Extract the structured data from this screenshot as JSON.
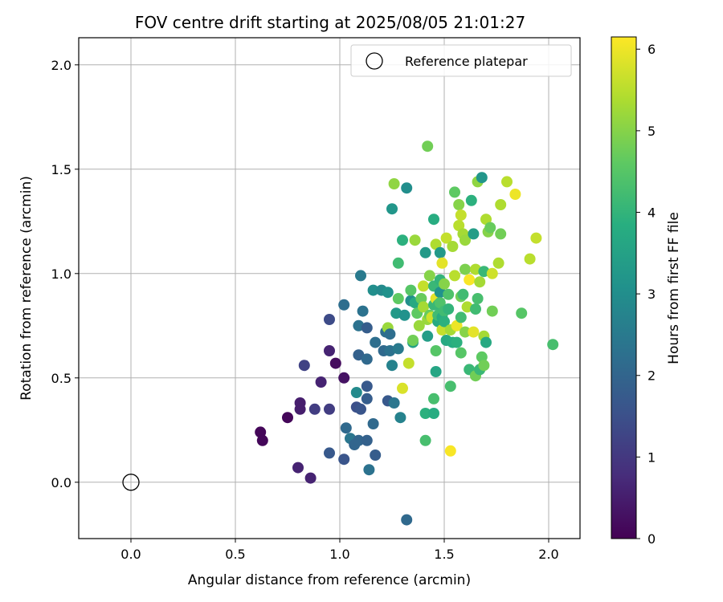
{
  "chart_data": {
    "type": "scatter",
    "title": "FOV centre drift starting at 2025/08/05 21:01:27",
    "xlabel": "Angular distance from reference (arcmin)",
    "ylabel": "Rotation from reference (arcmin)",
    "xlim": [
      -0.25,
      2.15
    ],
    "ylim": [
      -0.27,
      2.13
    ],
    "xticks": [
      0.0,
      0.5,
      1.0,
      1.5,
      2.0
    ],
    "xtick_labels": [
      "0.0",
      "0.5",
      "1.0",
      "1.5",
      "2.0"
    ],
    "yticks": [
      0.0,
      0.5,
      1.0,
      1.5,
      2.0
    ],
    "ytick_labels": [
      "0.0",
      "0.5",
      "1.0",
      "1.5",
      "2.0"
    ],
    "grid": true,
    "colormap": "viridis",
    "colorbar": {
      "label": "Hours from first FF file",
      "range": [
        0,
        6.15
      ],
      "ticks": [
        0,
        1,
        2,
        3,
        4,
        5,
        6
      ],
      "tick_labels": [
        "0",
        "1",
        "2",
        "3",
        "4",
        "5",
        "6"
      ]
    },
    "legend": {
      "position": "top-right",
      "entries": [
        {
          "label": "Reference platepar",
          "marker": "open-circle"
        }
      ]
    },
    "reference_point": {
      "x": 0.0,
      "y": 0.0
    },
    "point_fields": [
      "x",
      "y",
      "hours"
    ],
    "points": [
      [
        0.62,
        0.24,
        0.1
      ],
      [
        0.63,
        0.2,
        0.1
      ],
      [
        0.75,
        0.31,
        0.1
      ],
      [
        0.8,
        0.07,
        0.6
      ],
      [
        0.81,
        0.35,
        0.5
      ],
      [
        0.81,
        0.38,
        0.5
      ],
      [
        0.86,
        0.02,
        0.6
      ],
      [
        0.83,
        0.56,
        1.2
      ],
      [
        0.88,
        0.35,
        1.1
      ],
      [
        0.91,
        0.48,
        0.6
      ],
      [
        0.95,
        0.35,
        1.1
      ],
      [
        0.95,
        0.63,
        0.6
      ],
      [
        0.98,
        0.57,
        0.2
      ],
      [
        0.95,
        0.78,
        1.4
      ],
      [
        0.95,
        0.14,
        1.7
      ],
      [
        1.02,
        0.11,
        1.6
      ],
      [
        1.02,
        0.5,
        0.3
      ],
      [
        1.02,
        0.85,
        2.2
      ],
      [
        1.03,
        0.26,
        2.1
      ],
      [
        1.05,
        0.21,
        2.4
      ],
      [
        1.07,
        0.18,
        2.0
      ],
      [
        1.08,
        0.36,
        1.5
      ],
      [
        1.08,
        0.43,
        2.9
      ],
      [
        1.09,
        0.2,
        2.0
      ],
      [
        1.1,
        0.35,
        1.6
      ],
      [
        1.09,
        0.61,
        1.9
      ],
      [
        1.09,
        0.75,
        2.3
      ],
      [
        1.1,
        0.99,
        2.5
      ],
      [
        1.11,
        0.82,
        2.3
      ],
      [
        1.13,
        0.2,
        1.9
      ],
      [
        1.13,
        0.4,
        1.8
      ],
      [
        1.13,
        0.46,
        1.7
      ],
      [
        1.13,
        0.59,
        2.1
      ],
      [
        1.13,
        0.74,
        1.8
      ],
      [
        1.14,
        0.06,
        2.3
      ],
      [
        1.16,
        0.28,
        2.1
      ],
      [
        1.17,
        0.13,
        1.8
      ],
      [
        1.17,
        0.67,
        2.2
      ],
      [
        1.16,
        0.92,
        3.0
      ],
      [
        1.2,
        0.92,
        2.9
      ],
      [
        1.21,
        0.63,
        2.1
      ],
      [
        1.22,
        0.72,
        2.2
      ],
      [
        1.23,
        0.39,
        1.7
      ],
      [
        1.23,
        0.91,
        3.1
      ],
      [
        1.23,
        0.74,
        5.2
      ],
      [
        1.24,
        0.63,
        2.3
      ],
      [
        1.24,
        0.71,
        2.2
      ],
      [
        1.25,
        0.56,
        2.7
      ],
      [
        1.25,
        1.31,
        3.2
      ],
      [
        1.26,
        1.43,
        5.1
      ],
      [
        1.26,
        0.38,
        2.4
      ],
      [
        1.27,
        0.81,
        3.3
      ],
      [
        1.28,
        0.64,
        2.5
      ],
      [
        1.28,
        0.88,
        4.6
      ],
      [
        1.28,
        1.05,
        4.2
      ],
      [
        1.29,
        0.31,
        2.7
      ],
      [
        1.3,
        0.45,
        5.8
      ],
      [
        1.3,
        1.16,
        3.9
      ],
      [
        1.31,
        0.8,
        3.1
      ],
      [
        1.32,
        -0.18,
        2.1
      ],
      [
        1.32,
        1.41,
        3.0
      ],
      [
        1.33,
        0.57,
        5.6
      ],
      [
        1.34,
        0.87,
        3.0
      ],
      [
        1.34,
        0.92,
        4.5
      ],
      [
        1.35,
        0.67,
        3.5
      ],
      [
        1.35,
        0.68,
        4.8
      ],
      [
        1.36,
        0.86,
        3.7
      ],
      [
        1.36,
        1.16,
        5.2
      ],
      [
        1.37,
        0.81,
        4.6
      ],
      [
        1.38,
        0.75,
        5.2
      ],
      [
        1.39,
        0.88,
        4.7
      ],
      [
        1.4,
        0.84,
        5.3
      ],
      [
        1.4,
        0.94,
        5.6
      ],
      [
        1.41,
        0.33,
        3.9
      ],
      [
        1.41,
        0.2,
        4.3
      ],
      [
        1.41,
        1.1,
        3.3
      ],
      [
        1.42,
        1.61,
        4.8
      ],
      [
        1.42,
        0.78,
        5.2
      ],
      [
        1.42,
        0.7,
        3.4
      ],
      [
        1.43,
        0.99,
        5.0
      ],
      [
        1.43,
        0.8,
        4.7
      ],
      [
        1.44,
        0.79,
        5.7
      ],
      [
        1.45,
        0.33,
        3.8
      ],
      [
        1.45,
        0.4,
        4.3
      ],
      [
        1.45,
        1.26,
        3.8
      ],
      [
        1.45,
        0.85,
        4.1
      ],
      [
        1.45,
        0.94,
        4.1
      ],
      [
        1.46,
        0.88,
        5.9
      ],
      [
        1.46,
        0.63,
        4.5
      ],
      [
        1.46,
        1.14,
        5.4
      ],
      [
        1.46,
        0.53,
        3.6
      ],
      [
        1.47,
        0.77,
        3.7
      ],
      [
        1.47,
        0.85,
        4.1
      ],
      [
        1.47,
        0.8,
        4.2
      ],
      [
        1.48,
        0.97,
        4.0
      ],
      [
        1.48,
        1.1,
        3.3
      ],
      [
        1.48,
        0.91,
        3.1
      ],
      [
        1.48,
        0.86,
        4.4
      ],
      [
        1.49,
        0.73,
        5.6
      ],
      [
        1.49,
        1.05,
        5.9
      ],
      [
        1.49,
        0.79,
        3.8
      ],
      [
        1.5,
        0.95,
        5.0
      ],
      [
        1.5,
        0.82,
        4.2
      ],
      [
        1.5,
        0.77,
        3.9
      ],
      [
        1.51,
        1.17,
        5.6
      ],
      [
        1.51,
        0.68,
        3.7
      ],
      [
        1.52,
        0.83,
        4.0
      ],
      [
        1.52,
        0.9,
        4.4
      ],
      [
        1.53,
        0.46,
        4.3
      ],
      [
        1.53,
        0.15,
        6.1
      ],
      [
        1.53,
        0.73,
        5.3
      ],
      [
        1.54,
        1.13,
        5.3
      ],
      [
        1.54,
        0.67,
        3.8
      ],
      [
        1.55,
        0.99,
        5.5
      ],
      [
        1.55,
        1.39,
        4.6
      ],
      [
        1.56,
        0.75,
        6.0
      ],
      [
        1.56,
        0.67,
        3.9
      ],
      [
        1.57,
        1.33,
        5.0
      ],
      [
        1.57,
        1.23,
        5.5
      ],
      [
        1.58,
        0.89,
        4.8
      ],
      [
        1.58,
        1.28,
        5.6
      ],
      [
        1.58,
        0.62,
        4.5
      ],
      [
        1.58,
        0.79,
        4.2
      ],
      [
        1.59,
        1.19,
        5.3
      ],
      [
        1.59,
        0.9,
        4.2
      ],
      [
        1.6,
        1.16,
        5.2
      ],
      [
        1.6,
        1.02,
        4.9
      ],
      [
        1.6,
        0.72,
        5.0
      ],
      [
        1.61,
        0.84,
        5.4
      ],
      [
        1.62,
        0.97,
        6.1
      ],
      [
        1.62,
        0.54,
        4.1
      ],
      [
        1.63,
        1.35,
        3.9
      ],
      [
        1.64,
        1.19,
        3.4
      ],
      [
        1.64,
        0.72,
        5.9
      ],
      [
        1.65,
        0.51,
        4.8
      ],
      [
        1.65,
        0.83,
        4.2
      ],
      [
        1.65,
        1.02,
        5.4
      ],
      [
        1.66,
        0.88,
        4.3
      ],
      [
        1.66,
        1.44,
        5.1
      ],
      [
        1.67,
        0.54,
        4.1
      ],
      [
        1.67,
        0.96,
        5.3
      ],
      [
        1.68,
        1.46,
        3.2
      ],
      [
        1.68,
        0.6,
        4.6
      ],
      [
        1.69,
        0.7,
        5.3
      ],
      [
        1.69,
        0.56,
        4.8
      ],
      [
        1.69,
        1.01,
        4.1
      ],
      [
        1.7,
        0.67,
        3.7
      ],
      [
        1.7,
        1.26,
        5.4
      ],
      [
        1.71,
        1.2,
        5.0
      ],
      [
        1.72,
        1.22,
        4.7
      ],
      [
        1.73,
        1.0,
        5.7
      ],
      [
        1.73,
        0.82,
        4.8
      ],
      [
        1.76,
        1.05,
        5.4
      ],
      [
        1.77,
        1.33,
        5.4
      ],
      [
        1.77,
        1.19,
        4.8
      ],
      [
        1.8,
        1.44,
        5.5
      ],
      [
        1.84,
        1.38,
        6.0
      ],
      [
        1.87,
        0.81,
        4.5
      ],
      [
        1.91,
        1.07,
        5.5
      ],
      [
        1.94,
        1.17,
        5.6
      ],
      [
        2.02,
        0.66,
        4.3
      ]
    ]
  }
}
